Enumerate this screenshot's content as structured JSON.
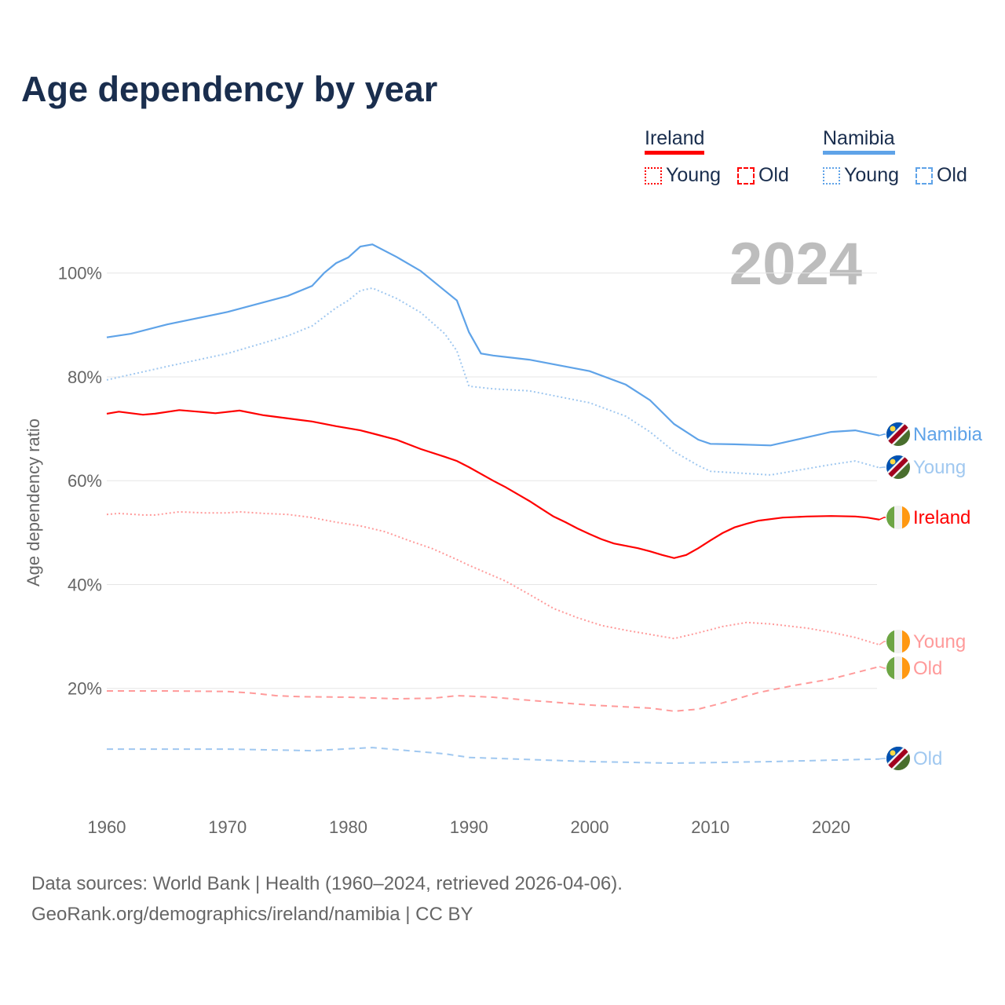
{
  "title": "Age dependency by year",
  "year_watermark": "2024",
  "legend": {
    "groups": [
      {
        "label": "Ireland",
        "color": "#ff0000",
        "items": [
          {
            "label": "Young",
            "style": "dotted"
          },
          {
            "label": "Old",
            "style": "dashed"
          }
        ]
      },
      {
        "label": "Namibia",
        "color": "#5fa3e8",
        "items": [
          {
            "label": "Young",
            "style": "dotted"
          },
          {
            "label": "Old",
            "style": "dashed"
          }
        ]
      }
    ]
  },
  "footer": {
    "line1": "Data sources: World Bank | Health (1960–2024, retrieved 2026-04-06).",
    "line2": "GeoRank.org/demographics/ireland/namibia | CC BY"
  },
  "chart_data": {
    "type": "line",
    "title": "Age dependency by year",
    "xlabel": "",
    "ylabel": "Age dependency ratio",
    "xlim": [
      1960,
      2024
    ],
    "ylim": [
      0,
      110
    ],
    "x_ticks": [
      "1960",
      "1970",
      "1980",
      "1990",
      "2000",
      "2010",
      "2020"
    ],
    "y_ticks": [
      "20%",
      "40%",
      "60%",
      "80%",
      "100%"
    ],
    "grid": true,
    "series": [
      {
        "name": "Namibia",
        "country": "Namibia",
        "label": "Namibia",
        "color": "#5fa3e8",
        "style": "solid",
        "x": [
          1960,
          1962,
          1965,
          1970,
          1975,
          1977,
          1978,
          1979,
          1980,
          1981,
          1982,
          1984,
          1986,
          1988,
          1989,
          1990,
          1991,
          1992,
          1995,
          2000,
          2003,
          2005,
          2007,
          2009,
          2010,
          2012,
          2015,
          2020,
          2022,
          2024
        ],
        "y": [
          87.6,
          88.3,
          90.1,
          92.5,
          95.6,
          97.5,
          100,
          101.9,
          103,
          105.1,
          105.5,
          103.1,
          100.4,
          96.6,
          94.7,
          88.6,
          84.5,
          84.1,
          83.3,
          81.1,
          78.5,
          75.5,
          70.9,
          67.9,
          67.1,
          67.0,
          66.8,
          69.4,
          69.7,
          68.7
        ]
      },
      {
        "name": "Namibia Young",
        "country": "Namibia",
        "label": "Young",
        "color": "#a0c8f0",
        "style": "dotted",
        "x": [
          1960,
          1965,
          1970,
          1975,
          1977,
          1979,
          1980,
          1981,
          1982,
          1984,
          1986,
          1988,
          1989,
          1990,
          1992,
          1995,
          2000,
          2003,
          2005,
          2007,
          2009,
          2010,
          2015,
          2020,
          2022,
          2024
        ],
        "y": [
          79.4,
          82.0,
          84.5,
          87.9,
          89.8,
          93.3,
          94.7,
          96.6,
          97.1,
          95.1,
          92.4,
          88.3,
          85.0,
          78.2,
          77.7,
          77.3,
          75.0,
          72.4,
          69.4,
          65.6,
          62.9,
          61.8,
          61.1,
          63.1,
          63.8,
          62.5
        ]
      },
      {
        "name": "Ireland",
        "country": "Ireland",
        "label": "Ireland",
        "color": "#ff0000",
        "style": "solid",
        "x": [
          1960,
          1961,
          1963,
          1964,
          1966,
          1968,
          1969,
          1971,
          1973,
          1975,
          1977,
          1979,
          1981,
          1982,
          1984,
          1986,
          1988,
          1989,
          1990,
          1992,
          1993,
          1995,
          1996,
          1997,
          1998,
          1999,
          2000,
          2001,
          2002,
          2004,
          2005,
          2006,
          2007,
          2008,
          2009,
          2010,
          2011,
          2012,
          2013,
          2014,
          2016,
          2018,
          2020,
          2022,
          2023,
          2024
        ],
        "y": [
          72.9,
          73.3,
          72.7,
          72.9,
          73.6,
          73.2,
          73.0,
          73.5,
          72.6,
          72.0,
          71.4,
          70.5,
          69.7,
          69.1,
          67.9,
          66.1,
          64.6,
          63.8,
          62.6,
          60.0,
          58.8,
          56.1,
          54.6,
          53.1,
          52.0,
          50.8,
          49.7,
          48.7,
          47.9,
          47.0,
          46.4,
          45.7,
          45.1,
          45.7,
          47.0,
          48.5,
          49.9,
          51.0,
          51.7,
          52.3,
          52.9,
          53.1,
          53.2,
          53.1,
          52.9,
          52.5
        ]
      },
      {
        "name": "Ireland Young",
        "country": "Ireland",
        "label": "Young",
        "color": "#ff9a9a",
        "style": "dotted",
        "x": [
          1960,
          1961,
          1963,
          1964,
          1966,
          1968,
          1970,
          1971,
          1973,
          1975,
          1977,
          1979,
          1981,
          1983,
          1985,
          1987,
          1989,
          1990,
          1993,
          1995,
          1997,
          1999,
          2001,
          2003,
          2005,
          2007,
          2009,
          2011,
          2013,
          2015,
          2018,
          2020,
          2022,
          2024
        ],
        "y": [
          53.5,
          53.7,
          53.4,
          53.4,
          54.0,
          53.8,
          53.8,
          54.0,
          53.7,
          53.5,
          52.9,
          52.0,
          51.3,
          50.2,
          48.5,
          46.9,
          44.8,
          43.7,
          40.7,
          38.1,
          35.4,
          33.6,
          32.1,
          31.2,
          30.4,
          29.6,
          30.7,
          31.9,
          32.7,
          32.4,
          31.6,
          30.8,
          29.8,
          28.4
        ]
      },
      {
        "name": "Ireland Old",
        "country": "Ireland",
        "label": "Old",
        "color": "#ff9a9a",
        "style": "dashed",
        "x": [
          1960,
          1965,
          1970,
          1972,
          1974,
          1976,
          1980,
          1984,
          1987,
          1989,
          1992,
          1995,
          2000,
          2005,
          2007,
          2009,
          2011,
          2014,
          2017,
          2020,
          2024
        ],
        "y": [
          19.5,
          19.5,
          19.4,
          19.1,
          18.6,
          18.4,
          18.3,
          18.0,
          18.1,
          18.6,
          18.3,
          17.7,
          16.8,
          16.2,
          15.6,
          16.0,
          17.2,
          19.2,
          20.6,
          21.8,
          24.2
        ]
      },
      {
        "name": "Namibia Old",
        "country": "Namibia",
        "label": "Old",
        "color": "#a0c8f0",
        "style": "dashed",
        "x": [
          1960,
          1970,
          1977,
          1982,
          1988,
          1990,
          2000,
          2007,
          2015,
          2024
        ],
        "y": [
          8.3,
          8.3,
          8.0,
          8.6,
          7.4,
          6.7,
          5.9,
          5.6,
          5.9,
          6.4
        ]
      }
    ]
  }
}
